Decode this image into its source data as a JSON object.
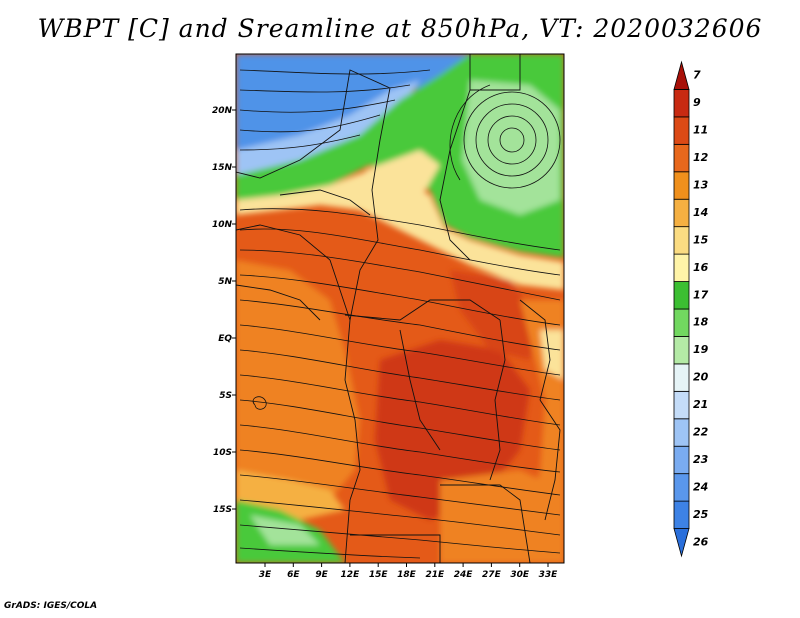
{
  "title": "WBPT [C] and Sreamline at 850hPa, VT: 2020032606",
  "credit": "GrADS: IGES/COLA",
  "map": {
    "lat_labels": [
      "20N",
      "15N",
      "10N",
      "5N",
      "EQ",
      "5S",
      "10S",
      "15S"
    ],
    "lon_labels": [
      "3E",
      "6E",
      "9E",
      "12E",
      "15E",
      "18E",
      "21E",
      "24E",
      "27E",
      "30E",
      "33E"
    ]
  },
  "colorbar": {
    "labels": [
      "7",
      "9",
      "11",
      "12",
      "13",
      "14",
      "15",
      "16",
      "17",
      "18",
      "19",
      "20",
      "21",
      "22",
      "23",
      "24",
      "25",
      "26"
    ],
    "colors": [
      "#2a6fdb",
      "#3d82e5",
      "#5a97ec",
      "#7aacf1",
      "#9ec4f5",
      "#c4dcf8",
      "#e6f4f7",
      "#b4eaa6",
      "#72d860",
      "#3cbf32",
      "#fff4a8",
      "#fbdc82",
      "#f5b042",
      "#f0901c",
      "#e8681c",
      "#dc4a16",
      "#c82a12",
      "#a81008"
    ]
  },
  "colors": {
    "blue": "#4f93e8",
    "green": "#49c93a",
    "pale_green": "#a3e39a",
    "yellow": "#fbe39a",
    "orange": "#ef8220",
    "red_orange": "#e45a18",
    "red": "#cf3712"
  }
}
